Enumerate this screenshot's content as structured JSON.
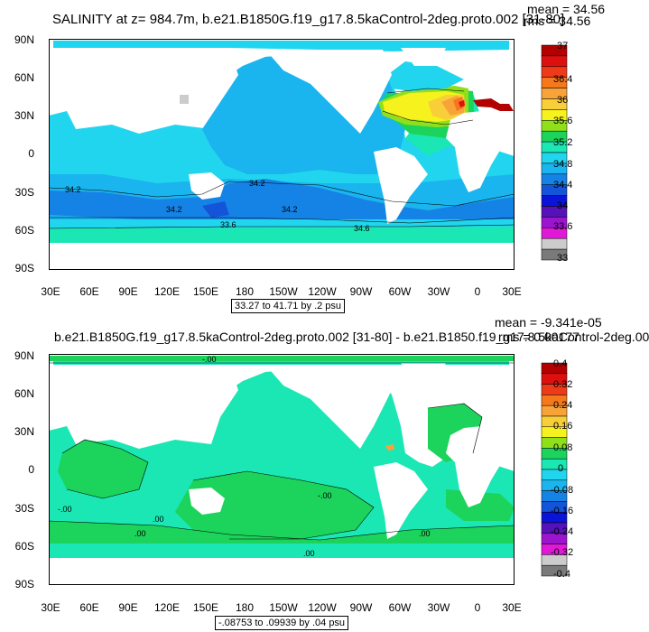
{
  "panels": [
    {
      "title": "SALINITY at z= 984.7m, b.e21.B1850G.f19_g17.8.5kaControl-2deg.proto.002 [31-80]",
      "mean": "mean = 34.56",
      "rms": "rms = 34.56",
      "range_text": "33.27 to 41.71 by .2 psu",
      "contour_labels": [
        "34.2",
        "34.2",
        "34.2",
        "34.2",
        "33.6",
        "34.6"
      ],
      "colorbar": {
        "labels": [
          "37",
          "36.4",
          "36",
          "35.6",
          "35.2",
          "34.8",
          "34.4",
          "34",
          "33.6",
          "33"
        ],
        "colors": [
          "#b30000",
          "#dd1010",
          "#ef3a1a",
          "#f6781d",
          "#f8a33a",
          "#f8cf38",
          "#f5f21d",
          "#8fe01b",
          "#1cd35b",
          "#1ae7b4",
          "#22d5ee",
          "#1ab4ef",
          "#1583e5",
          "#1454d8",
          "#0a14d9",
          "#5512b8",
          "#9b15cf",
          "#e218d8",
          "#cccccc",
          "#7a7a7a"
        ]
      }
    },
    {
      "title": "b.e21.B1850G.f19_g17.8.5kaControl-2deg.proto.002 [31-80] - b.e21.B1850.f19_g17.8.5kaControl-2deg.00",
      "mean": "mean = -9.341e-05",
      "rms": "rms = 0.00177",
      "range_text": "-.08753 to .09939 by .04 psu",
      "contour_labels": [
        "-.00",
        "-.00",
        ".00",
        ".00",
        "-.00",
        ".00",
        ".00"
      ],
      "colorbar": {
        "labels": [
          "0.4",
          "0.32",
          "0.24",
          "0.16",
          "0.08",
          "0",
          "-0.08",
          "-0.16",
          "-0.24",
          "-0.32",
          "-0.4"
        ],
        "colors": [
          "#b30000",
          "#dd1010",
          "#ef3a1a",
          "#f6781d",
          "#f8a33a",
          "#f8cf38",
          "#f5f21d",
          "#8fe01b",
          "#1cd35b",
          "#1ae7b4",
          "#22d5ee",
          "#1ab4ef",
          "#1583e5",
          "#1454d8",
          "#0a14d9",
          "#5512b8",
          "#9b15cf",
          "#e218d8",
          "#cccccc",
          "#7a7a7a"
        ]
      }
    }
  ],
  "axes": {
    "lat_ticks": [
      "90N",
      "60N",
      "30N",
      "0",
      "30S",
      "60S",
      "90S"
    ],
    "lon_ticks": [
      "30E",
      "60E",
      "90E",
      "120E",
      "150E",
      "180",
      "150W",
      "120W",
      "90W",
      "60W",
      "30W",
      "0",
      "30E"
    ]
  },
  "colors": {
    "ocean_top": "#22aef0",
    "ocean_top_south": "#1583e5",
    "ocean_top_warm": "#1ae7b4",
    "ocean_bottom": "#1ae7b4",
    "ocean_bottom_green": "#1cd35b",
    "land": "#ffffff"
  }
}
